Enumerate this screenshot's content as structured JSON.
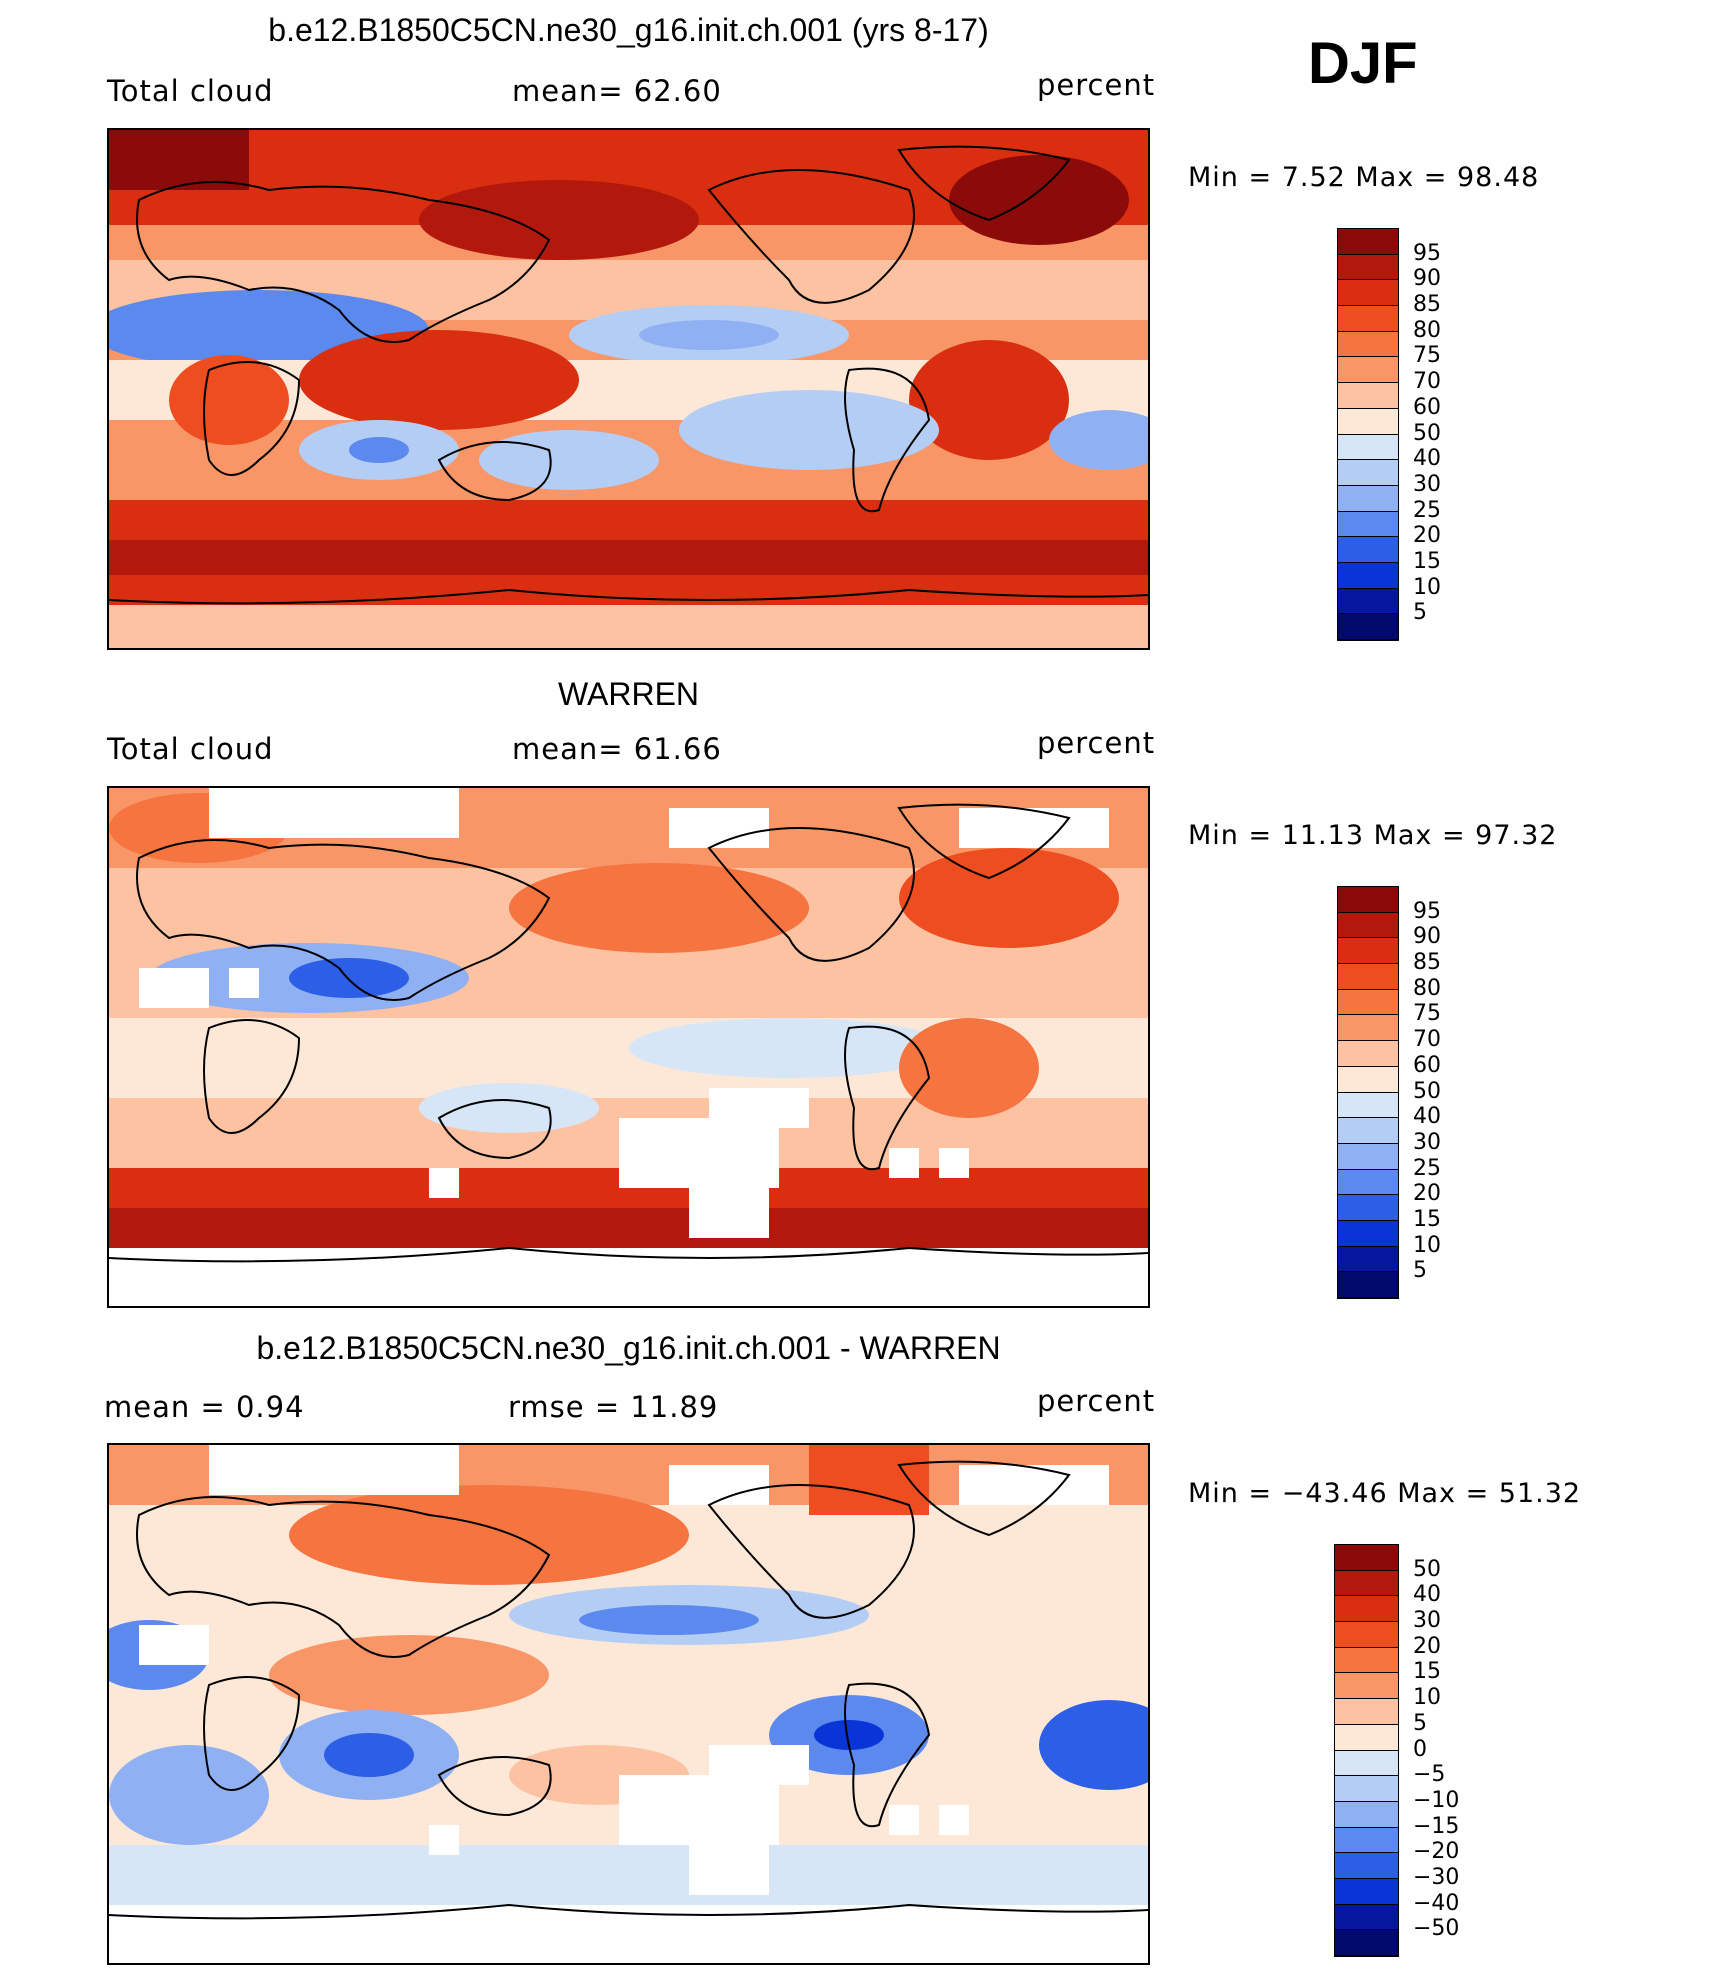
{
  "season": "DJF",
  "panels": [
    {
      "id": "model",
      "title": "b.e12.B1850C5CN.ne30_g16.init.ch.001 (yrs 8-17)",
      "left_label": "Total cloud",
      "center_label": "mean=   62.60",
      "right_label": "percent",
      "minmax": "Min =    7.52 Max =   98.48",
      "colorbar": {
        "labels": [
          "95",
          "90",
          "85",
          "80",
          "75",
          "70",
          "60",
          "50",
          "40",
          "30",
          "25",
          "20",
          "15",
          "10",
          "5"
        ],
        "colors": [
          "#8b0a0a",
          "#b3180d",
          "#d92e10",
          "#ee4d1f",
          "#f5743f",
          "#f99668",
          "#fcc2a2",
          "#fde8d8",
          "#d7e6f7",
          "#b4cdf5",
          "#8fb0f2",
          "#5c89ee",
          "#2d5ee6",
          "#0a35d6",
          "#05169f",
          "#020a6e"
        ]
      }
    },
    {
      "id": "obs",
      "title": "WARREN",
      "left_label": "Total cloud",
      "center_label": "mean=   61.66",
      "right_label": "percent",
      "minmax": "Min =   11.13 Max =   97.32",
      "colorbar": {
        "labels": [
          "95",
          "90",
          "85",
          "80",
          "75",
          "70",
          "60",
          "50",
          "40",
          "30",
          "25",
          "20",
          "15",
          "10",
          "5"
        ],
        "colors": [
          "#8b0a0a",
          "#b3180d",
          "#d92e10",
          "#ee4d1f",
          "#f5743f",
          "#f99668",
          "#fcc2a2",
          "#fde8d8",
          "#d7e6f7",
          "#b4cdf5",
          "#8fb0f2",
          "#5c89ee",
          "#2d5ee6",
          "#0a35d6",
          "#05169f",
          "#020a6e"
        ]
      }
    },
    {
      "id": "diff",
      "title": "b.e12.B1850C5CN.ne30_g16.init.ch.001 - WARREN",
      "left_label": "mean =    0.94",
      "center_label": "rmse =   11.89",
      "right_label": "percent",
      "minmax": "Min = −43.46 Max =   51.32",
      "colorbar": {
        "labels": [
          "50",
          "40",
          "30",
          "20",
          "15",
          "10",
          "5",
          "0",
          "−5",
          "−10",
          "−15",
          "−20",
          "−30",
          "−40",
          "−50"
        ],
        "colors": [
          "#8b0a0a",
          "#b3180d",
          "#d92e10",
          "#ee4d1f",
          "#f5743f",
          "#f99668",
          "#fcc2a2",
          "#fde8d8",
          "#d7e6f7",
          "#b4cdf5",
          "#8fb0f2",
          "#5c89ee",
          "#2d5ee6",
          "#0a35d6",
          "#05169f",
          "#020a6e"
        ]
      }
    }
  ]
}
